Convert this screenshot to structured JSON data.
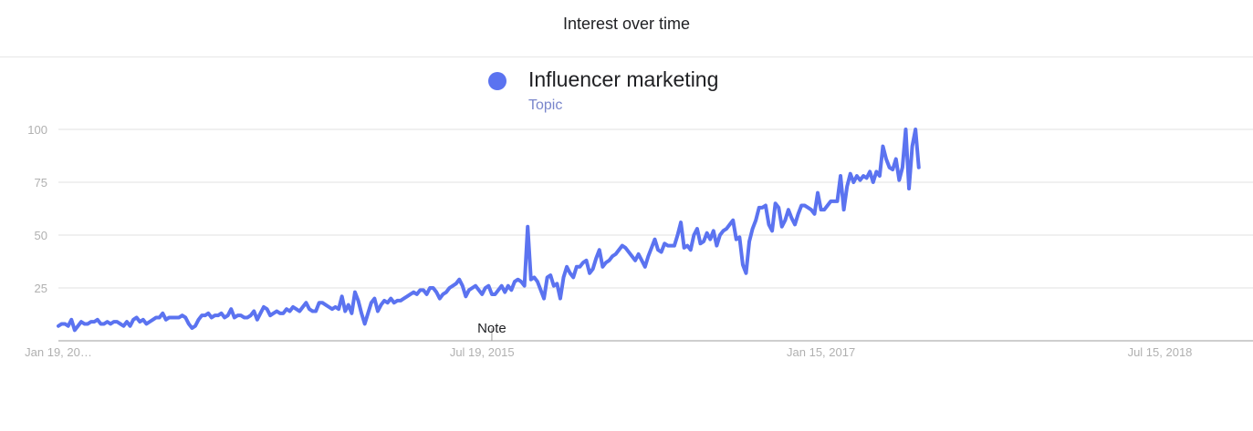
{
  "header": {
    "title": "Interest over time"
  },
  "legend": {
    "name": "Influencer marketing",
    "subtitle": "Topic",
    "color": "#5b73f0"
  },
  "chart_data": {
    "type": "line",
    "title": "Interest over time",
    "xlabel": "",
    "ylabel": "",
    "ylim": [
      0,
      100
    ],
    "y_ticks": [
      25,
      50,
      75,
      100
    ],
    "x_tick_labels": [
      "Jan 19, 20…",
      "Jul 19, 2015",
      "Jan 15, 2017",
      "Jul 15, 2018"
    ],
    "x_tick_weeks": [
      0,
      130,
      234,
      338
    ],
    "x_range_weeks": [
      0,
      366
    ],
    "grid": true,
    "legend_position": "top-center",
    "annotation": {
      "label": "Note",
      "week": 133
    },
    "series": [
      {
        "name": "Influencer marketing",
        "color": "#5b73f0",
        "start": "Jan 19, 2014",
        "interval": "week",
        "values": [
          7,
          8,
          8,
          7,
          10,
          5,
          7,
          9,
          8,
          8,
          9,
          9,
          10,
          8,
          8,
          9,
          8,
          9,
          9,
          8,
          7,
          9,
          7,
          10,
          11,
          9,
          10,
          8,
          9,
          10,
          11,
          11,
          13,
          10,
          11,
          11,
          11,
          11,
          12,
          11,
          8,
          6,
          7,
          10,
          12,
          12,
          13,
          11,
          12,
          12,
          13,
          11,
          12,
          15,
          11,
          12,
          12,
          11,
          11,
          12,
          14,
          10,
          13,
          16,
          15,
          12,
          13,
          14,
          13,
          13,
          15,
          14,
          16,
          15,
          14,
          16,
          18,
          15,
          14,
          14,
          18,
          18,
          17,
          16,
          15,
          16,
          15,
          21,
          14,
          17,
          13,
          23,
          19,
          13,
          8,
          13,
          18,
          20,
          14,
          17,
          19,
          18,
          20,
          18,
          19,
          19,
          20,
          21,
          22,
          23,
          22,
          24,
          24,
          22,
          25,
          25,
          23,
          20,
          22,
          23,
          25,
          26,
          27,
          29,
          26,
          21,
          24,
          25,
          26,
          24,
          22,
          25,
          26,
          22,
          22,
          24,
          26,
          23,
          26,
          24,
          28,
          29,
          28,
          26,
          54,
          29,
          30,
          28,
          24,
          20,
          30,
          31,
          26,
          27,
          20,
          30,
          35,
          32,
          30,
          35,
          35,
          37,
          38,
          32,
          34,
          39,
          43,
          35,
          37,
          38,
          40,
          41,
          43,
          45,
          44,
          42,
          40,
          38,
          41,
          38,
          35,
          40,
          44,
          48,
          43,
          42,
          46,
          45,
          45,
          45,
          50,
          56,
          44,
          45,
          43,
          50,
          53,
          46,
          47,
          51,
          48,
          52,
          45,
          50,
          52,
          53,
          55,
          57,
          48,
          49,
          36,
          32,
          47,
          53,
          57,
          63,
          63,
          64,
          55,
          52,
          65,
          63,
          54,
          57,
          62,
          58,
          55,
          60,
          64,
          64,
          63,
          62,
          60,
          70,
          62,
          62,
          64,
          66,
          66,
          66,
          78,
          62,
          73,
          79,
          75,
          78,
          76,
          78,
          77,
          80,
          75,
          80,
          78,
          92,
          86,
          82,
          81,
          86,
          76,
          82,
          100,
          72,
          92,
          100,
          82
        ]
      }
    ]
  }
}
